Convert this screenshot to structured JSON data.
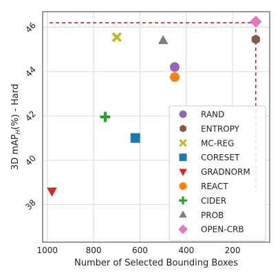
{
  "chart_data": {
    "type": "scatter",
    "title": "",
    "xlabel": "Number of Selected Bounding Boxes",
    "ylabel": "3D mAP_H(%) - Hard",
    "ylabel_prefix": "3D mAP",
    "ylabel_sub": "H",
    "ylabel_suffix": "(%) - Hard",
    "xlim": [
      1020,
      40
    ],
    "ylim": [
      36.3,
      46.7
    ],
    "x_inverted": true,
    "grid": true,
    "legend_position": "lower-right",
    "x_ticks": [
      {
        "value": 1000,
        "label": "1000"
      },
      {
        "value": 800,
        "label": "800"
      },
      {
        "value": 600,
        "label": "600"
      },
      {
        "value": 400,
        "label": "400"
      },
      {
        "value": 200,
        "label": "200"
      }
    ],
    "y_ticks": [
      {
        "value": 38,
        "label": "38"
      },
      {
        "value": 40,
        "label": "40"
      },
      {
        "value": 42,
        "label": "42"
      },
      {
        "value": 44,
        "label": "44"
      },
      {
        "value": 46,
        "label": "46"
      }
    ],
    "series": [
      {
        "name": "RAND",
        "marker": "circle",
        "color": "#9467bd",
        "x": 450,
        "y": 44.2
      },
      {
        "name": "ENTROPY",
        "marker": "hexagon",
        "color": "#8c564b",
        "x": 100,
        "y": 45.45
      },
      {
        "name": "MC-REG",
        "marker": "x",
        "color": "#bcbd22",
        "x": 700,
        "y": 45.55
      },
      {
        "name": "CORESET",
        "marker": "square",
        "color": "#1f77b4",
        "x": 620,
        "y": 41.0
      },
      {
        "name": "GRADNORM",
        "marker": "triangle-down",
        "color": "#d62728",
        "x": 980,
        "y": 38.6
      },
      {
        "name": "REACT",
        "marker": "circle",
        "color": "#ff7f0e",
        "x": 450,
        "y": 43.75
      },
      {
        "name": "CIDER",
        "marker": "plus",
        "color": "#2ca02c",
        "x": 750,
        "y": 41.95
      },
      {
        "name": "PROB",
        "marker": "triangle-up",
        "color": "#7f7f7f",
        "x": 500,
        "y": 45.4
      },
      {
        "name": "OPEN-CRB",
        "marker": "diamond",
        "color": "#e377c2",
        "x": 100,
        "y": 46.25
      }
    ],
    "reference_lines": [
      {
        "orientation": "horizontal",
        "y": 46.2,
        "x_from": 990,
        "x_to": 100,
        "color": "#e8141e",
        "style": "dashed"
      },
      {
        "orientation": "vertical",
        "x": 100,
        "y_from": 46.2,
        "y_to": 38.6,
        "color": "#e8141e",
        "style": "dashed"
      }
    ]
  }
}
